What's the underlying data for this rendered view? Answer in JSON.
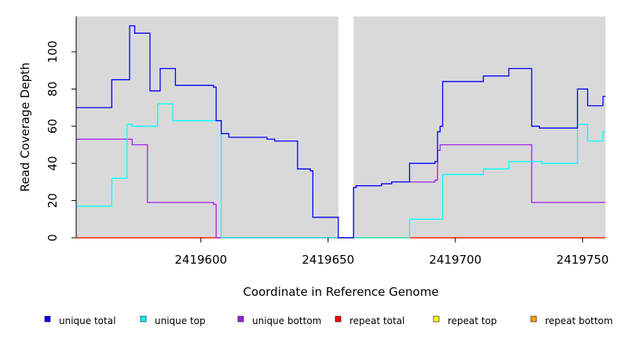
{
  "chart_data": {
    "type": "line",
    "title": "",
    "xlabel": "Coordinate in Reference Genome",
    "ylabel": "Read Coverage Depth",
    "xlim": [
      2419551,
      2419759
    ],
    "ylim": [
      0,
      119
    ],
    "xticks": [
      2419600,
      2419650,
      2419700,
      2419750
    ],
    "yticks": [
      0,
      20,
      40,
      60,
      80,
      100
    ],
    "panel_background": "#d9d9d9",
    "gap": {
      "from": 2419654,
      "to": 2419660,
      "color": "#ffffff"
    },
    "legend_position": "bottom",
    "series": [
      {
        "name": "unique total",
        "color": "#0000ff",
        "points": [
          [
            2419551,
            70
          ],
          [
            2419565,
            70
          ],
          [
            2419565,
            85
          ],
          [
            2419572,
            85
          ],
          [
            2419572,
            114
          ],
          [
            2419574,
            114
          ],
          [
            2419574,
            110
          ],
          [
            2419580,
            110
          ],
          [
            2419580,
            79
          ],
          [
            2419584,
            79
          ],
          [
            2419584,
            91
          ],
          [
            2419590,
            91
          ],
          [
            2419590,
            82
          ],
          [
            2419605,
            82
          ],
          [
            2419605,
            81
          ],
          [
            2419606,
            81
          ],
          [
            2419606,
            63
          ],
          [
            2419608,
            63
          ],
          [
            2419608,
            56
          ],
          [
            2419611,
            56
          ],
          [
            2419611,
            54
          ],
          [
            2419626,
            54
          ],
          [
            2419626,
            53
          ],
          [
            2419629,
            53
          ],
          [
            2419629,
            52
          ],
          [
            2419638,
            52
          ],
          [
            2419638,
            37
          ],
          [
            2419643,
            37
          ],
          [
            2419643,
            36
          ],
          [
            2419644,
            36
          ],
          [
            2419644,
            11
          ],
          [
            2419654,
            11
          ],
          [
            2419654,
            0
          ],
          [
            2419660,
            0
          ],
          [
            2419660,
            27
          ],
          [
            2419661,
            27
          ],
          [
            2419661,
            28
          ],
          [
            2419671,
            28
          ],
          [
            2419671,
            29
          ],
          [
            2419675,
            29
          ],
          [
            2419675,
            30
          ],
          [
            2419682,
            30
          ],
          [
            2419682,
            40
          ],
          [
            2419692,
            40
          ],
          [
            2419692,
            41
          ],
          [
            2419693,
            41
          ],
          [
            2419693,
            57
          ],
          [
            2419694,
            57
          ],
          [
            2419694,
            60
          ],
          [
            2419695,
            60
          ],
          [
            2419695,
            84
          ],
          [
            2419711,
            84
          ],
          [
            2419711,
            87
          ],
          [
            2419721,
            87
          ],
          [
            2419721,
            91
          ],
          [
            2419730,
            91
          ],
          [
            2419730,
            60
          ],
          [
            2419733,
            60
          ],
          [
            2419733,
            59
          ],
          [
            2419748,
            59
          ],
          [
            2419748,
            80
          ],
          [
            2419752,
            80
          ],
          [
            2419752,
            71
          ],
          [
            2419758,
            71
          ],
          [
            2419758,
            76
          ],
          [
            2419759,
            76
          ]
        ]
      },
      {
        "name": "unique top",
        "color": "#00ffff",
        "points": [
          [
            2419551,
            17
          ],
          [
            2419565,
            17
          ],
          [
            2419565,
            32
          ],
          [
            2419571,
            32
          ],
          [
            2419571,
            61
          ],
          [
            2419573,
            61
          ],
          [
            2419573,
            60
          ],
          [
            2419583,
            60
          ],
          [
            2419583,
            72
          ],
          [
            2419589,
            72
          ],
          [
            2419589,
            63
          ],
          [
            2419608,
            63
          ],
          [
            2419608,
            0
          ],
          [
            2419682,
            0
          ],
          [
            2419682,
            10
          ],
          [
            2419695,
            10
          ],
          [
            2419695,
            34
          ],
          [
            2419711,
            34
          ],
          [
            2419711,
            37
          ],
          [
            2419721,
            37
          ],
          [
            2419721,
            41
          ],
          [
            2419734,
            41
          ],
          [
            2419734,
            40
          ],
          [
            2419748,
            40
          ],
          [
            2419748,
            61
          ],
          [
            2419752,
            61
          ],
          [
            2419752,
            52
          ],
          [
            2419758,
            52
          ],
          [
            2419758,
            57
          ],
          [
            2419759,
            57
          ]
        ]
      },
      {
        "name": "unique bottom",
        "color": "#a020f0",
        "points": [
          [
            2419551,
            53
          ],
          [
            2419573,
            53
          ],
          [
            2419573,
            50
          ],
          [
            2419579,
            50
          ],
          [
            2419579,
            19
          ],
          [
            2419605,
            19
          ],
          [
            2419605,
            18
          ],
          [
            2419606,
            18
          ],
          [
            2419606,
            0
          ],
          [
            2419654,
            0
          ],
          [
            2419654,
            0
          ],
          [
            2419660,
            0
          ],
          [
            2419660,
            27
          ],
          [
            2419661,
            27
          ],
          [
            2419661,
            28
          ],
          [
            2419671,
            28
          ],
          [
            2419671,
            29
          ],
          [
            2419675,
            29
          ],
          [
            2419675,
            30
          ],
          [
            2419692,
            30
          ],
          [
            2419692,
            31
          ],
          [
            2419693,
            31
          ],
          [
            2419693,
            47
          ],
          [
            2419694,
            47
          ],
          [
            2419694,
            50
          ],
          [
            2419730,
            50
          ],
          [
            2419730,
            19
          ],
          [
            2419759,
            19
          ]
        ]
      },
      {
        "name": "repeat total",
        "color": "#ff0000",
        "points": [
          [
            2419551,
            0
          ],
          [
            2419759,
            0
          ]
        ]
      },
      {
        "name": "repeat top",
        "color": "#ffff00",
        "points": [
          [
            2419551,
            0
          ],
          [
            2419759,
            0
          ]
        ]
      },
      {
        "name": "repeat bottom",
        "color": "#ffa500",
        "points": [
          [
            2419551,
            0
          ],
          [
            2419759,
            0
          ]
        ]
      }
    ]
  }
}
